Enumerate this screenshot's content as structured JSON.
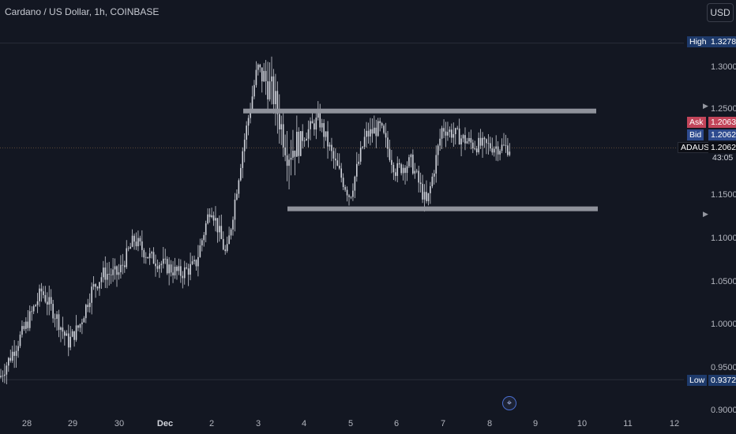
{
  "header": {
    "title": "Cardano / US Dollar, 1h, COINBASE"
  },
  "currency_button": "USD",
  "price_axis": {
    "ticks": [
      "1.3000",
      "1.2500",
      "1.1500",
      "1.1000",
      "1.0500",
      "1.0000",
      "0.9500",
      "0.9000"
    ],
    "high": {
      "label": "High",
      "value": "1.3278"
    },
    "ask": {
      "label": "Ask",
      "value": "1.2063"
    },
    "bid": {
      "label": "Bid",
      "value": "1.2062"
    },
    "last": {
      "label": "ADAUSD",
      "value": "1.2062",
      "countdown": "43:05"
    },
    "low": {
      "label": "Low",
      "value": "0.9372"
    }
  },
  "time_axis": {
    "labels": [
      "28",
      "29",
      "30",
      "Dec",
      "2",
      "3",
      "4",
      "5",
      "6",
      "7",
      "8",
      "9",
      "10",
      "11",
      "12"
    ]
  },
  "chart_data": {
    "type": "candlestick",
    "symbol": "ADAUSD",
    "interval": "1h",
    "exchange": "COINBASE",
    "ylim": [
      0.9,
      1.34
    ],
    "session_high": 1.3278,
    "session_low": 0.9372,
    "last": 1.2062,
    "ask": 1.2063,
    "bid": 1.2062,
    "close_path": [
      [
        "28",
        0.94
      ],
      [
        "28",
        1.0
      ],
      [
        "28",
        1.04
      ],
      [
        "29",
        1.01
      ],
      [
        "29",
        0.98
      ],
      [
        "29",
        1.0
      ],
      [
        "29",
        1.04
      ],
      [
        "30",
        1.06
      ],
      [
        "30",
        1.06
      ],
      [
        "30",
        1.1
      ],
      [
        "Dec",
        1.08
      ],
      [
        "Dec",
        1.07
      ],
      [
        "Dec",
        1.06
      ],
      [
        "2",
        1.07
      ],
      [
        "2",
        1.14
      ],
      [
        "2",
        1.08
      ],
      [
        "3",
        1.2
      ],
      [
        "3",
        1.3
      ],
      [
        "3",
        1.27
      ],
      [
        "4",
        1.2
      ],
      [
        "4",
        1.22
      ],
      [
        "4",
        1.24
      ],
      [
        "5",
        1.19
      ],
      [
        "5",
        1.15
      ],
      [
        "5",
        1.22
      ],
      [
        "6",
        1.23
      ],
      [
        "6",
        1.18
      ],
      [
        "6",
        1.19
      ],
      [
        "7",
        1.14
      ],
      [
        "7",
        1.23
      ],
      [
        "7",
        1.22
      ],
      [
        "8",
        1.21
      ],
      [
        "8",
        1.2062
      ]
    ],
    "annotations": [
      {
        "type": "horizontal-band",
        "price": 1.249,
        "from": "3",
        "to": "10"
      },
      {
        "type": "horizontal-band",
        "price": 1.1355,
        "from": "4",
        "to": "10"
      }
    ]
  },
  "colors": {
    "background": "#131722",
    "candle": "#d1d4dc",
    "band": "#9598a1",
    "ask": "#c2455a",
    "bid": "#2e4b8f",
    "pill_dark": "#1e3a6b",
    "last_label": "#0c0e15"
  },
  "icons": {
    "goto_realtime": "scroll-to-realtime-icon"
  }
}
